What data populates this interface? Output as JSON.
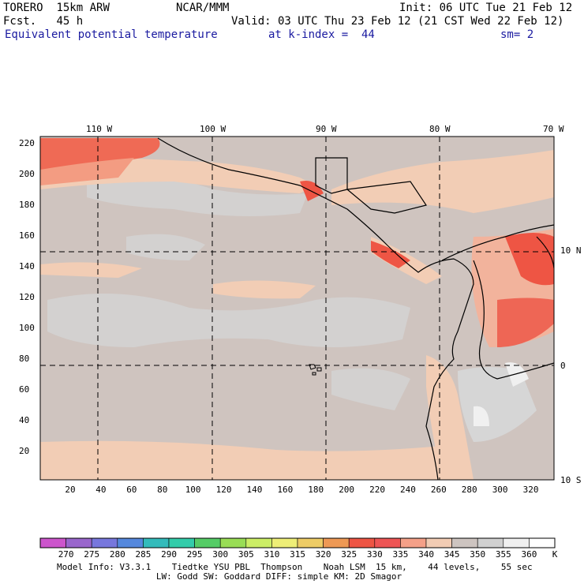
{
  "header": {
    "model": "TORERO",
    "resolution": "15km ARW",
    "center": "NCAR/MMM",
    "init": "Init: 06 UTC Tue 21 Feb 12",
    "fcst_label": "Fcst.",
    "fcst_value": "45 h",
    "valid": "Valid: 03 UTC Thu 23 Feb 12 (21 CST Wed 22 Feb 12)",
    "field": "Equivalent potential temperature",
    "level": "at k-index =  44",
    "smoothing": "sm= 2"
  },
  "map": {
    "top_ticks": [
      "110 W",
      "100 W",
      "90 W",
      "80 W",
      "70 W"
    ],
    "right_ticks": [
      "10 N",
      "0",
      "10 S"
    ],
    "left_ticks": [
      "220",
      "200",
      "180",
      "160",
      "140",
      "120",
      "100",
      "80",
      "60",
      "40",
      "20"
    ],
    "bottom_ticks": [
      "20",
      "40",
      "60",
      "80",
      "100",
      "120",
      "140",
      "160",
      "180",
      "200",
      "220",
      "240",
      "260",
      "280",
      "300",
      "320"
    ]
  },
  "colorbar": {
    "labels": [
      "270",
      "275",
      "280",
      "285",
      "290",
      "295",
      "300",
      "305",
      "310",
      "315",
      "320",
      "325",
      "330",
      "335",
      "340",
      "345",
      "350",
      "355",
      "360",
      "K"
    ],
    "colors": [
      "#cc55cc",
      "#9966cc",
      "#7777dd",
      "#5588dd",
      "#33bbbb",
      "#33ccaa",
      "#55cc66",
      "#99dd55",
      "#ccee66",
      "#eeee77",
      "#eecc66",
      "#ee9955",
      "#ee5544",
      "#ee5555",
      "#f4a088",
      "#f2ccb4",
      "#cdc4c0",
      "#d0d0d0",
      "#f0f0f0",
      "#ffffff"
    ]
  },
  "footer": {
    "line1": "Model Info: V3.3.1    Tiedtke YSU PBL  Thompson    Noah LSM  15 km,    44 levels,    55 sec",
    "line2": "                   LW: Godd SW: Goddard DIFF: simple KM: 2D Smagor"
  }
}
